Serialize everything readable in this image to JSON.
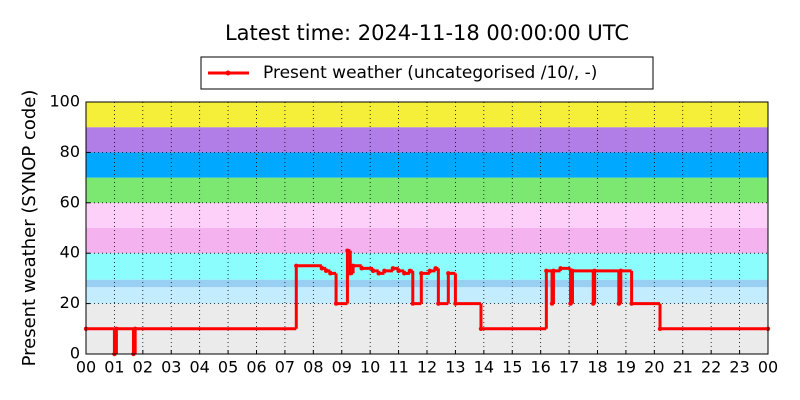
{
  "chart_data": {
    "type": "line",
    "title": "Latest time: 2024-11-18 00:00:00 UTC",
    "y_label": "Present weather (SYNOP code)",
    "step": "post",
    "grid": true,
    "legend": "top-center",
    "xlim": [
      0,
      24
    ],
    "xticks": [
      {
        "value": 0,
        "label": "00"
      },
      {
        "value": 1,
        "label": "01"
      },
      {
        "value": 2,
        "label": "02"
      },
      {
        "value": 3,
        "label": "03"
      },
      {
        "value": 4,
        "label": "04"
      },
      {
        "value": 5,
        "label": "05"
      },
      {
        "value": 6,
        "label": "06"
      },
      {
        "value": 7,
        "label": "07"
      },
      {
        "value": 8,
        "label": "08"
      },
      {
        "value": 9,
        "label": "09"
      },
      {
        "value": 10,
        "label": "10"
      },
      {
        "value": 11,
        "label": "11"
      },
      {
        "value": 12,
        "label": "12"
      },
      {
        "value": 13,
        "label": "13"
      },
      {
        "value": 14,
        "label": "14"
      },
      {
        "value": 15,
        "label": "15"
      },
      {
        "value": 16,
        "label": "16"
      },
      {
        "value": 17,
        "label": "17"
      },
      {
        "value": 18,
        "label": "18"
      },
      {
        "value": 19,
        "label": "19"
      },
      {
        "value": 20,
        "label": "20"
      },
      {
        "value": 21,
        "label": "21"
      },
      {
        "value": 22,
        "label": "22"
      },
      {
        "value": 23,
        "label": "23"
      },
      {
        "value": 24,
        "label": "00"
      }
    ],
    "ylim": [
      0,
      100
    ],
    "yticks": [
      0,
      20,
      40,
      60,
      80,
      100
    ],
    "bands": [
      {
        "from": 0,
        "to": 20,
        "color": "#ebebeb"
      },
      {
        "from": 20,
        "to": 26.5,
        "color": "#c4ecff"
      },
      {
        "from": 26.5,
        "to": 29.5,
        "color": "#99cff2"
      },
      {
        "from": 29.5,
        "to": 40,
        "color": "#8cfdfd"
      },
      {
        "from": 40,
        "to": 50,
        "color": "#f4b2ef"
      },
      {
        "from": 50,
        "to": 60,
        "color": "#fdd0f9"
      },
      {
        "from": 60,
        "to": 70,
        "color": "#7ce871"
      },
      {
        "from": 70,
        "to": 80,
        "color": "#00a9ff"
      },
      {
        "from": 80,
        "to": 90,
        "color": "#b07ee6"
      },
      {
        "from": 90,
        "to": 100,
        "color": "#f5ef3a"
      }
    ],
    "series": [
      {
        "name": "Present weather (uncategorised /10/, -)",
        "color": "#ff0000",
        "x": [
          0,
          1.0,
          1.07,
          1.67,
          1.73,
          7.4,
          8.3,
          8.45,
          8.6,
          8.8,
          9.2,
          9.3,
          9.4,
          9.7,
          10.1,
          10.3,
          10.5,
          10.8,
          11.0,
          11.2,
          11.4,
          11.5,
          11.8,
          12.1,
          12.3,
          12.4,
          12.75,
          13.0,
          13.9,
          16.2,
          16.4,
          16.45,
          16.7,
          17.05,
          17.12,
          17.85,
          17.9,
          18.75,
          18.82,
          19.2,
          20.2,
          24
        ],
        "values": [
          10,
          0,
          10,
          0,
          10,
          35,
          34,
          33,
          32,
          20,
          41,
          32,
          35,
          34,
          33,
          32,
          33,
          34,
          33,
          32,
          33,
          20,
          32,
          33,
          34,
          20,
          32,
          20,
          10,
          33,
          20,
          33,
          34,
          20,
          33,
          20,
          33,
          20,
          33,
          20,
          10,
          10
        ]
      }
    ]
  }
}
